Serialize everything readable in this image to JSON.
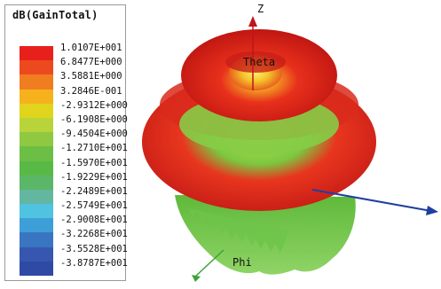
{
  "legend": {
    "title": "dB(GainTotal)",
    "entries": [
      {
        "label": "1.0107E+001",
        "color": "#e8201c"
      },
      {
        "label": "6.8477E+000",
        "color": "#ec4a1e"
      },
      {
        "label": "3.5881E+000",
        "color": "#f07d1f"
      },
      {
        "label": "3.2846E-001",
        "color": "#f6b21c"
      },
      {
        "label": "-2.9312E+000",
        "color": "#e0d51c"
      },
      {
        "label": "-6.1908E+000",
        "color": "#b8d43a"
      },
      {
        "label": "-9.4504E+000",
        "color": "#8ec941"
      },
      {
        "label": "-1.2710E+001",
        "color": "#6cbf44"
      },
      {
        "label": "-1.5970E+001",
        "color": "#58b947"
      },
      {
        "label": "-1.9229E+001",
        "color": "#5cb667"
      },
      {
        "label": "-2.2489E+001",
        "color": "#63b7a1"
      },
      {
        "label": "-2.5749E+001",
        "color": "#4fc3e0"
      },
      {
        "label": "-2.9008E+001",
        "color": "#3e9fd8"
      },
      {
        "label": "-3.2268E+001",
        "color": "#3a75c2"
      },
      {
        "label": "-3.5528E+001",
        "color": "#3656b0"
      },
      {
        "label": "-3.8787E+001",
        "color": "#2f4aa4"
      }
    ]
  },
  "axes": {
    "z_label": "Z",
    "theta_label": "Theta",
    "phi_label": "Phi"
  },
  "colors": {
    "axis_red": "#c0141c",
    "axis_blue": "#1f3fa0",
    "axis_green": "#3ca23c",
    "lobe_red": "#e02620",
    "lobe_green": "#6cc04a"
  }
}
